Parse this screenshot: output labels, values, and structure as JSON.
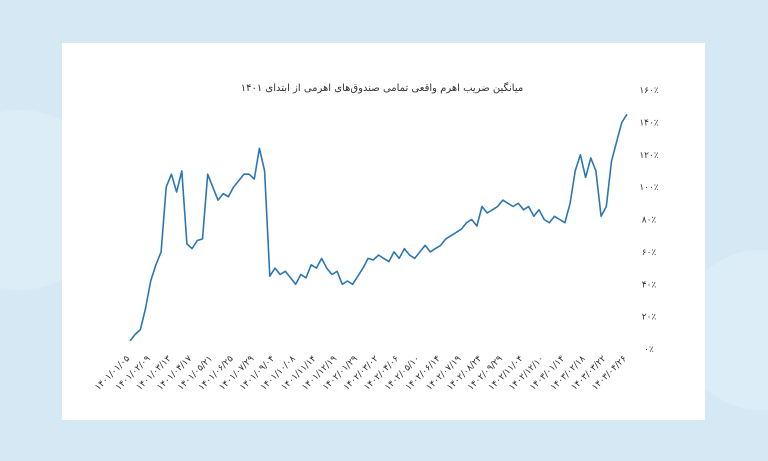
{
  "chart_data": {
    "type": "line",
    "title": "میانگین ضریب اهرم واقعی تمامی صندوق‌های اهرمی از ابتدای ۱۴۰۱",
    "categories": [
      "۱۴۰۱/۰۱/۰۵",
      null,
      null,
      null,
      "۱۴۰۱/۰۲/۰۹",
      null,
      null,
      null,
      "۱۴۰۱/۰۳/۱۳",
      null,
      null,
      null,
      "۱۴۰۱/۰۴/۱۷",
      null,
      null,
      null,
      "۱۴۰۱/۰۵/۲۱",
      null,
      null,
      null,
      "۱۴۰۱/۰۶/۲۵",
      null,
      null,
      null,
      "۱۴۰۱/۰۷/۲۹",
      null,
      null,
      null,
      "۱۴۰۱/۰۹/۰۴",
      null,
      null,
      null,
      "۱۴۰۱/۱۰/۰۸",
      null,
      null,
      null,
      "۱۴۰۱/۱۱/۱۴",
      null,
      null,
      null,
      "۱۴۰۱/۱۲/۱۹",
      null,
      null,
      null,
      "۱۴۰۲/۰۱/۲۹",
      null,
      null,
      null,
      "۱۴۰۲/۰۳/۰۲",
      null,
      null,
      null,
      "۱۴۰۲/۰۴/۰۶",
      null,
      null,
      null,
      "۱۴۰۲/۰۵/۱۰",
      null,
      null,
      null,
      "۱۴۰۲/۰۶/۱۴",
      null,
      null,
      null,
      "۱۴۰۲/۰۷/۱۹",
      null,
      null,
      null,
      "۱۴۰۲/۰۸/۲۴",
      null,
      null,
      null,
      "۱۴۰۲/۰۹/۲۹",
      null,
      null,
      null,
      "۱۴۰۲/۱۱/۰۴",
      null,
      null,
      null,
      "۱۴۰۲/۱۲/۱۰",
      null,
      null,
      null,
      "۱۴۰۳/۰۱/۱۴",
      null,
      null,
      null,
      "۱۴۰۳/۰۲/۱۸",
      null,
      null,
      null,
      "۱۴۰۳/۰۳/۲۲",
      null,
      null,
      null,
      "۱۴۰۳/۰۴/۲۶"
    ],
    "values": [
      5,
      9,
      12,
      25,
      42,
      52,
      60,
      100,
      108,
      97,
      110,
      65,
      62,
      67,
      68,
      108,
      100,
      92,
      96,
      94,
      100,
      104,
      108,
      108,
      105,
      124,
      110,
      45,
      50,
      46,
      48,
      44,
      40,
      46,
      44,
      52,
      50,
      56,
      50,
      46,
      48,
      40,
      42,
      40,
      45,
      50,
      56,
      55,
      58,
      56,
      54,
      60,
      56,
      62,
      58,
      56,
      60,
      64,
      60,
      62,
      64,
      68,
      70,
      72,
      74,
      78,
      80,
      76,
      88,
      84,
      86,
      88,
      92,
      90,
      88,
      90,
      86,
      88,
      82,
      86,
      80,
      78,
      82,
      80,
      78,
      90,
      110,
      120,
      106,
      118,
      110,
      82,
      88,
      116,
      128,
      140,
      145
    ],
    "color": "#2b77b3",
    "ylim": [
      0,
      160
    ],
    "yticks": [
      {
        "value": 0,
        "label": "۰٪"
      },
      {
        "value": 20,
        "label": "۲۰٪"
      },
      {
        "value": 40,
        "label": "۴۰٪"
      },
      {
        "value": 60,
        "label": "۶۰٪"
      },
      {
        "value": 80,
        "label": "۸۰٪"
      },
      {
        "value": 100,
        "label": "۱۰۰٪"
      },
      {
        "value": 120,
        "label": "۱۲۰٪"
      },
      {
        "value": 140,
        "label": "۱۴۰٪"
      },
      {
        "value": 160,
        "label": "۱۶۰٪"
      }
    ],
    "yaxis_side": "right",
    "grid": false
  }
}
